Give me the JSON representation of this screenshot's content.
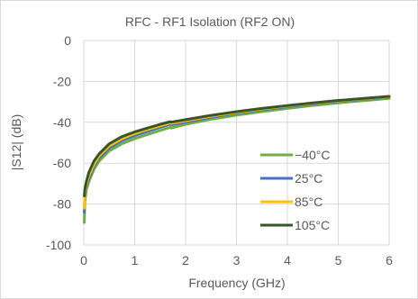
{
  "chart_data": {
    "type": "line",
    "title": "RFC - RF1 Isolation (RF2 ON)",
    "xlabel": "Frequency (GHz)",
    "ylabel": "|S12| (dB)",
    "xlim": [
      0,
      6
    ],
    "ylim": [
      -100,
      0
    ],
    "xticks": [
      0,
      1,
      2,
      3,
      4,
      5,
      6
    ],
    "yticks": [
      0,
      -20,
      -40,
      -60,
      -80,
      -100
    ],
    "grid": true,
    "legend_position": "center-right",
    "series": [
      {
        "name": "−40°C",
        "color": "#70ad47",
        "x": [
          0.01,
          0.02,
          0.05,
          0.1,
          0.2,
          0.3,
          0.5,
          0.75,
          1.0,
          1.25,
          1.5,
          1.7,
          1.72,
          2.0,
          2.5,
          3.0,
          3.5,
          4.0,
          4.5,
          5.0,
          5.5,
          6.0
        ],
        "y": [
          -89,
          -79,
          -73,
          -69,
          -63,
          -59,
          -54,
          -50.5,
          -48,
          -46,
          -44,
          -42.5,
          -42.8,
          -41,
          -38.5,
          -36.5,
          -34.8,
          -33.2,
          -31.8,
          -30.5,
          -29.4,
          -28.3
        ]
      },
      {
        "name": "25°C",
        "color": "#4472c4",
        "x": [
          0.01,
          0.02,
          0.05,
          0.1,
          0.2,
          0.3,
          0.5,
          0.75,
          1.0,
          1.25,
          1.5,
          1.7,
          1.72,
          2.0,
          2.5,
          3.0,
          3.5,
          4.0,
          4.5,
          5.0,
          5.5,
          6.0
        ],
        "y": [
          -84,
          -77,
          -72,
          -67.5,
          -61.5,
          -57.5,
          -52.5,
          -49,
          -46.5,
          -44.5,
          -42.5,
          -41,
          -41.3,
          -39.8,
          -37.5,
          -35.6,
          -33.9,
          -32.4,
          -31,
          -29.8,
          -28.7,
          -27.7
        ]
      },
      {
        "name": "85°C",
        "color": "#ffc000",
        "x": [
          0.01,
          0.02,
          0.05,
          0.1,
          0.2,
          0.3,
          0.5,
          0.75,
          1.0,
          1.25,
          1.5,
          1.7,
          1.72,
          2.0,
          2.5,
          3.0,
          3.5,
          4.0,
          4.5,
          5.0,
          5.5,
          6.0
        ],
        "y": [
          -82,
          -75,
          -70.5,
          -66,
          -60.5,
          -56.5,
          -51.5,
          -48,
          -45.5,
          -43.5,
          -41.7,
          -40.3,
          -40.5,
          -39.2,
          -37,
          -35.2,
          -33.5,
          -32,
          -30.7,
          -29.5,
          -28.5,
          -27.5
        ]
      },
      {
        "name": "105°C",
        "color": "#375623",
        "x": [
          0.01,
          0.02,
          0.05,
          0.1,
          0.2,
          0.3,
          0.5,
          0.75,
          1.0,
          1.25,
          1.5,
          1.7,
          1.72,
          2.0,
          2.5,
          3.0,
          3.5,
          4.0,
          4.5,
          5.0,
          5.5,
          6.0
        ],
        "y": [
          -76,
          -73,
          -69,
          -64.5,
          -59,
          -55.5,
          -50.5,
          -47,
          -44.7,
          -42.8,
          -41,
          -39.7,
          -39.9,
          -38.7,
          -36.6,
          -34.8,
          -33.2,
          -31.8,
          -30.5,
          -29.3,
          -28.3,
          -27.3
        ]
      }
    ]
  }
}
